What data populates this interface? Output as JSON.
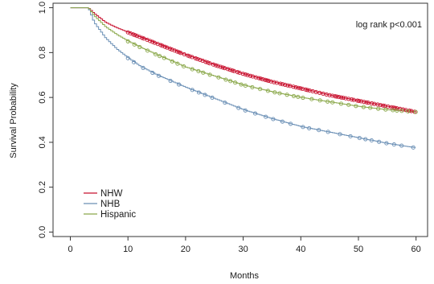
{
  "chart_data": {
    "type": "line",
    "xlabel": "Months",
    "ylabel": "Survival Probability",
    "xlim": [
      -3,
      62
    ],
    "ylim": [
      -0.02,
      1.02
    ],
    "x_ticks": [
      0,
      10,
      20,
      30,
      40,
      50,
      60
    ],
    "y_ticks": [
      0.0,
      0.2,
      0.4,
      0.6,
      0.8,
      1.0
    ],
    "x_tick_labels": [
      "0",
      "10",
      "20",
      "30",
      "40",
      "50",
      "60"
    ],
    "y_tick_labels": [
      "0.0",
      "0.2",
      "0.4",
      "0.6",
      "0.8",
      "1.0"
    ],
    "grid": false,
    "legend_position": "bottom-left",
    "annotation": "log rank p<0.001",
    "series": [
      {
        "name": "NHW",
        "color": "#c8102e",
        "censor_density": "high",
        "x": [
          0,
          3,
          4,
          5,
          6,
          8,
          10,
          12,
          15,
          20,
          25,
          30,
          35,
          40,
          45,
          50,
          55,
          60
        ],
        "y": [
          1.0,
          1.0,
          0.975,
          0.955,
          0.935,
          0.91,
          0.89,
          0.87,
          0.84,
          0.79,
          0.745,
          0.705,
          0.67,
          0.64,
          0.61,
          0.585,
          0.56,
          0.535
        ]
      },
      {
        "name": "NHB",
        "color": "#6a8fb5",
        "censor_density": "low",
        "x": [
          0,
          3,
          4,
          5,
          6,
          8,
          10,
          12,
          15,
          20,
          25,
          30,
          35,
          40,
          45,
          50,
          55,
          60
        ],
        "y": [
          1.0,
          1.0,
          0.935,
          0.9,
          0.865,
          0.815,
          0.775,
          0.74,
          0.7,
          0.645,
          0.595,
          0.545,
          0.505,
          0.47,
          0.445,
          0.42,
          0.395,
          0.375
        ]
      },
      {
        "name": "Hispanic",
        "color": "#8aa84a",
        "censor_density": "medium",
        "x": [
          0,
          3,
          4,
          5,
          6,
          8,
          10,
          12,
          15,
          20,
          25,
          30,
          35,
          40,
          45,
          50,
          55,
          60
        ],
        "y": [
          1.0,
          1.0,
          0.965,
          0.94,
          0.915,
          0.88,
          0.85,
          0.825,
          0.79,
          0.735,
          0.695,
          0.655,
          0.625,
          0.6,
          0.58,
          0.56,
          0.545,
          0.535
        ]
      }
    ]
  }
}
